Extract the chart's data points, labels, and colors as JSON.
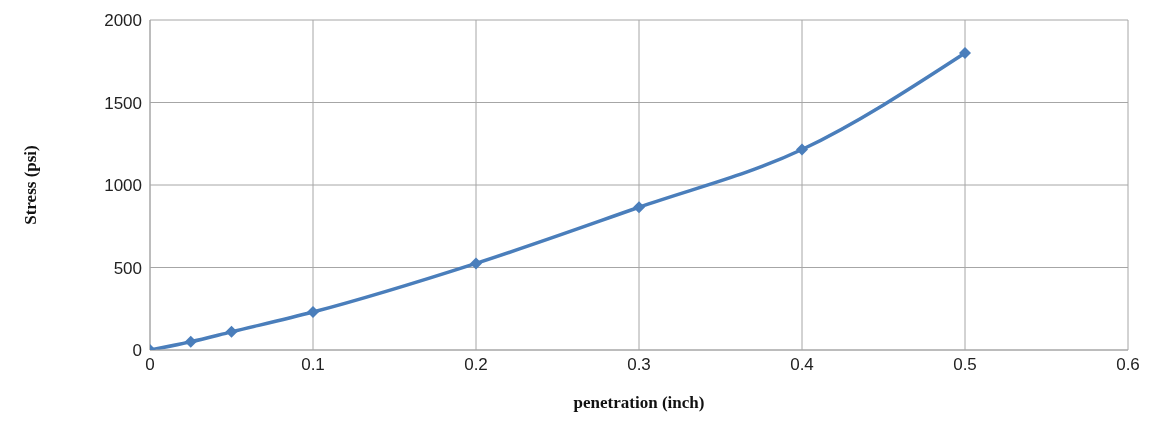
{
  "chart_data": {
    "type": "line",
    "xlabel": "penetration (inch)",
    "ylabel": "Stress (psi)",
    "x": [
      0,
      0.025,
      0.05,
      0.1,
      0.2,
      0.3,
      0.4,
      0.5
    ],
    "series": [
      {
        "color": "#4a7ebb",
        "values": [
          0,
          50,
          110,
          230,
          525,
          865,
          1215,
          1800
        ]
      }
    ],
    "xlim": [
      0,
      0.6
    ],
    "xticks": [
      0,
      0.1,
      0.2,
      0.3,
      0.4,
      0.5,
      0.6
    ],
    "ylim": [
      0,
      2000
    ],
    "yticks": [
      0,
      500,
      1000,
      1500,
      2000
    ],
    "grid": true,
    "legend": false,
    "marker": "diamond",
    "line_style": "solid"
  }
}
